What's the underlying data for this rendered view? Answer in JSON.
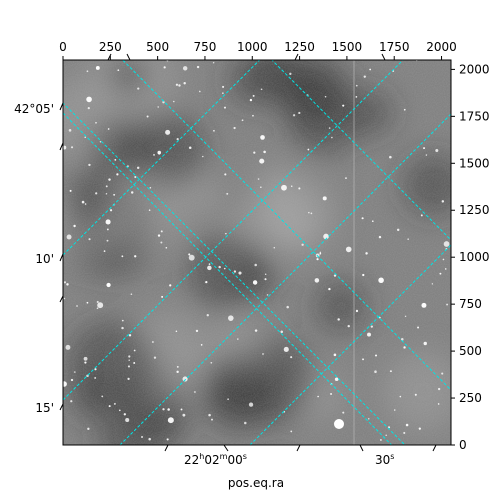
{
  "figure": {
    "xlabel": "pos.eq.ra",
    "pixel_axis_top": {
      "range": [
        0,
        2050
      ],
      "ticks": [
        0,
        250,
        500,
        750,
        1000,
        1250,
        1500,
        1750,
        2000
      ],
      "labels": [
        "0",
        "250",
        "500",
        "750",
        "1000",
        "1250",
        "1500",
        "1750",
        "2000"
      ]
    },
    "pixel_axis_right": {
      "range": [
        0,
        2050
      ],
      "ticks": [
        0,
        250,
        500,
        750,
        1000,
        1250,
        1500,
        1750,
        2000
      ],
      "labels": [
        "0",
        "250",
        "500",
        "750",
        "1000",
        "1250",
        "1500",
        "1750",
        "2000"
      ]
    },
    "dec_axis_left": {
      "labels": [
        "42°05'",
        "10'",
        "15'"
      ]
    },
    "ra_axis_bottom": {
      "label_main": "22",
      "label_h": "h",
      "label_min": "02",
      "label_m": "m",
      "label_sec": "00",
      "label_s": "s",
      "label_30": "30",
      "label_30s": "s"
    },
    "grid_color": "#00e5e5",
    "image_style": "grayscale astronomical star field"
  }
}
